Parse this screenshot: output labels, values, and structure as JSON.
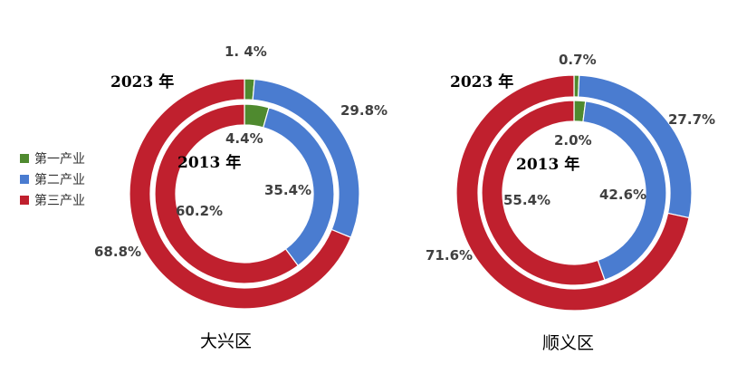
{
  "chart_data": {
    "type": "donut",
    "legend": {
      "position": "left",
      "entries": [
        "第一产业",
        "第二产业",
        "第三产业"
      ]
    },
    "colors": {
      "第一产业": "#4f8a2f",
      "第二产业": "#4a7cd0",
      "第三产业": "#c0202e"
    },
    "charts": [
      {
        "name": "大兴区",
        "outer_ring": {
          "label": "2023 年",
          "categories": [
            "第一产业",
            "第二产业",
            "第三产业"
          ],
          "values": [
            1.4,
            29.8,
            68.8
          ],
          "labels": [
            "1. 4%",
            "29.8%",
            "68.8%"
          ]
        },
        "inner_ring": {
          "label": "2013 年",
          "categories": [
            "第一产业",
            "第二产业",
            "第三产业"
          ],
          "values": [
            4.4,
            35.4,
            60.2
          ],
          "labels": [
            "4.4%",
            "35.4%",
            "60.2%"
          ]
        }
      },
      {
        "name": "顺义区",
        "outer_ring": {
          "label": "2023 年",
          "categories": [
            "第一产业",
            "第二产业",
            "第三产业"
          ],
          "values": [
            0.7,
            27.7,
            71.6
          ],
          "labels": [
            "0.7%",
            "27.7%",
            "71.6%"
          ]
        },
        "inner_ring": {
          "label": "2013 年",
          "categories": [
            "第一产业",
            "第二产业",
            "第三产业"
          ],
          "values": [
            2.0,
            42.6,
            55.4
          ],
          "labels": [
            "2.0%",
            "42.6%",
            "55.4%"
          ]
        }
      }
    ]
  }
}
